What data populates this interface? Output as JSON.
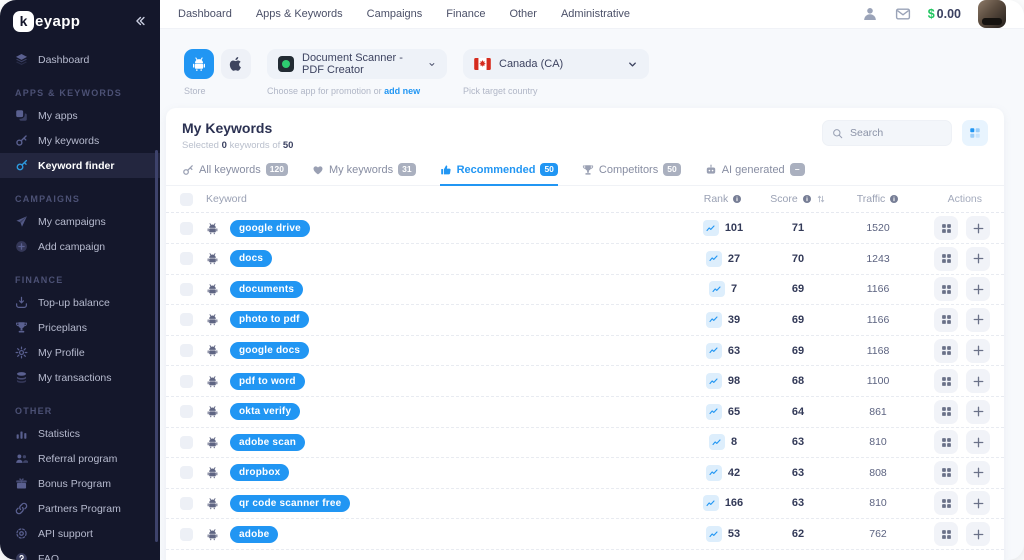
{
  "brand": {
    "name_k": "k",
    "name_rest": "eyapp"
  },
  "topnav": {
    "items": [
      "Dashboard",
      "Apps & Keywords",
      "Campaigns",
      "Finance",
      "Other",
      "Administrative"
    ]
  },
  "account": {
    "balance_currency": "$",
    "balance_amount": "0.00"
  },
  "sidebar": {
    "items": [
      {
        "type": "item",
        "label": "Dashboard",
        "icon": "dashboard"
      },
      {
        "type": "section",
        "label": "APPS & KEYWORDS"
      },
      {
        "type": "item",
        "label": "My apps",
        "icon": "apps"
      },
      {
        "type": "item",
        "label": "My keywords",
        "icon": "key"
      },
      {
        "type": "item",
        "label": "Keyword finder",
        "icon": "finder",
        "active": true
      },
      {
        "type": "section",
        "label": "CAMPAIGNS"
      },
      {
        "type": "item",
        "label": "My campaigns",
        "icon": "campaign"
      },
      {
        "type": "item",
        "label": "Add campaign",
        "icon": "addcircle"
      },
      {
        "type": "section",
        "label": "FINANCE"
      },
      {
        "type": "item",
        "label": "Top-up balance",
        "icon": "topup"
      },
      {
        "type": "item",
        "label": "Priceplans",
        "icon": "trophy"
      },
      {
        "type": "item",
        "label": "My Profile",
        "icon": "gear"
      },
      {
        "type": "item",
        "label": "My transactions",
        "icon": "coins"
      },
      {
        "type": "section",
        "label": "OTHER"
      },
      {
        "type": "item",
        "label": "Statistics",
        "icon": "stats"
      },
      {
        "type": "item",
        "label": "Referral program",
        "icon": "referral"
      },
      {
        "type": "item",
        "label": "Bonus Program",
        "icon": "gift"
      },
      {
        "type": "item",
        "label": "Partners Program",
        "icon": "partners"
      },
      {
        "type": "item",
        "label": "API support",
        "icon": "api"
      },
      {
        "type": "item",
        "label": "FAQ",
        "icon": "faq"
      }
    ]
  },
  "selector": {
    "store_label": "Store",
    "app_name": "Document Scanner - PDF Creator",
    "app_caption": "Choose app for promotion or",
    "add_new_label": "add new",
    "country_name": "Canada (CA)",
    "country_caption": "Pick target country"
  },
  "panel": {
    "title": "My Keywords",
    "selected_prefix": "Selected",
    "selected_count": "0",
    "selected_infix": "keywords of",
    "selected_total": "50",
    "search_placeholder": "Search"
  },
  "tabs": [
    {
      "label": "All keywords",
      "count": "120",
      "icon": "key"
    },
    {
      "label": "My keywords",
      "count": "31",
      "icon": "heart"
    },
    {
      "label": "Recommended",
      "count": "50",
      "icon": "thumb",
      "active": true
    },
    {
      "label": "Competitors",
      "count": "50",
      "icon": "trophy"
    },
    {
      "label": "AI generated",
      "count": "–",
      "icon": "robot"
    }
  ],
  "table": {
    "headers": {
      "keyword": "Keyword",
      "rank": "Rank",
      "score": "Score",
      "traffic": "Traffic",
      "actions": "Actions"
    },
    "rows": [
      {
        "keyword": "google drive",
        "rank": "101",
        "score": "71",
        "traffic": "1520"
      },
      {
        "keyword": "docs",
        "rank": "27",
        "score": "70",
        "traffic": "1243"
      },
      {
        "keyword": "documents",
        "rank": "7",
        "score": "69",
        "traffic": "1166"
      },
      {
        "keyword": "photo to pdf",
        "rank": "39",
        "score": "69",
        "traffic": "1166"
      },
      {
        "keyword": "google docs",
        "rank": "63",
        "score": "69",
        "traffic": "1168"
      },
      {
        "keyword": "pdf to word",
        "rank": "98",
        "score": "68",
        "traffic": "1100"
      },
      {
        "keyword": "okta verify",
        "rank": "65",
        "score": "64",
        "traffic": "861"
      },
      {
        "keyword": "adobe scan",
        "rank": "8",
        "score": "63",
        "traffic": "810"
      },
      {
        "keyword": "dropbox",
        "rank": "42",
        "score": "63",
        "traffic": "808"
      },
      {
        "keyword": "qr code scanner free",
        "rank": "166",
        "score": "63",
        "traffic": "810"
      },
      {
        "keyword": "adobe",
        "rank": "53",
        "score": "62",
        "traffic": "762"
      }
    ]
  },
  "colors": {
    "accent": "#2196f3",
    "sidebar_bg": "#14172b",
    "balance_green": "#1fc55f"
  }
}
